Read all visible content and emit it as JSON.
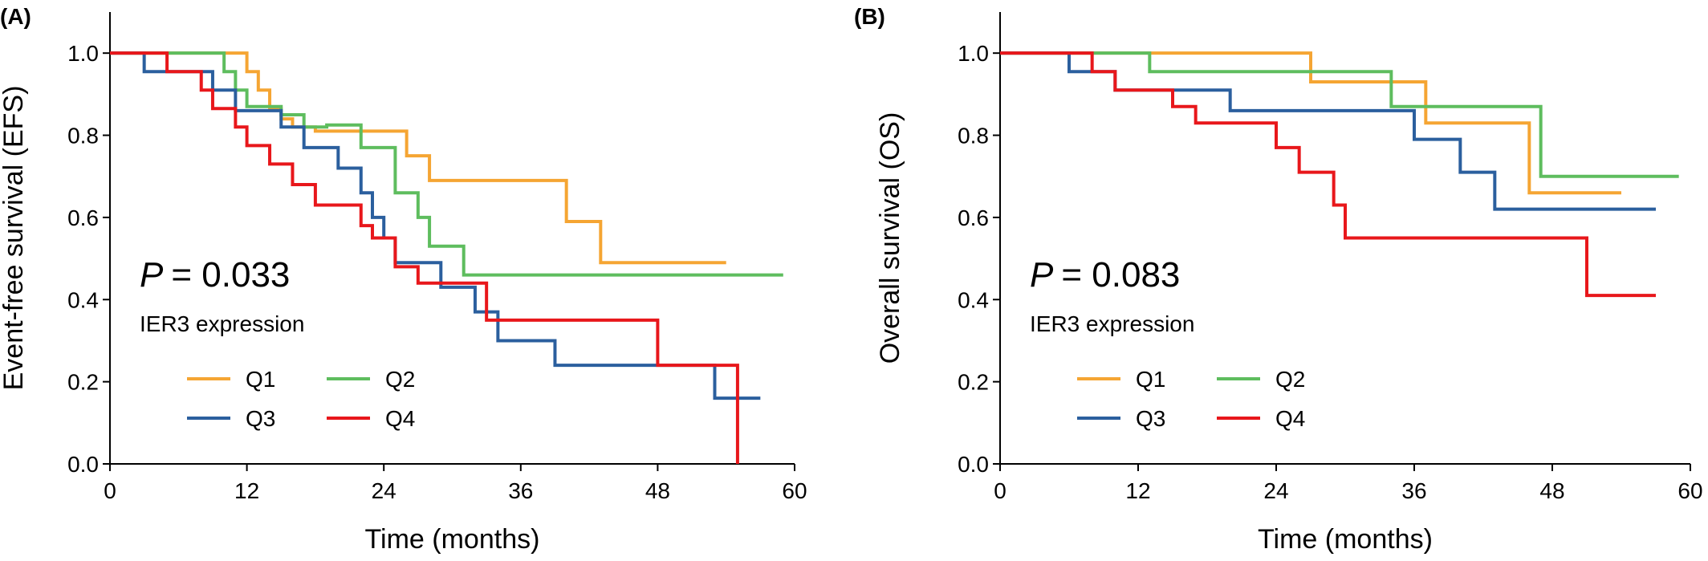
{
  "chart_data": [
    {
      "type": "line",
      "panel_label": "(A)",
      "xlabel": "Time (months)",
      "ylabel": "Event-free survival (EFS)",
      "xlim": [
        0,
        60
      ],
      "ylim": [
        0,
        1.1
      ],
      "xticks": [
        0,
        12,
        24,
        36,
        48,
        60
      ],
      "yticks": [
        0.0,
        0.2,
        0.4,
        0.6,
        0.8,
        1.0
      ],
      "grid": false,
      "annotation_p": "= 0.033",
      "annotation_p_symbol": "P",
      "legend_title": "IER3 expression",
      "legend_placement": "bottom-left",
      "series": [
        {
          "name": "Q1",
          "color": "#F5A533",
          "steps": [
            [
              0,
              1.0
            ],
            [
              12,
              0.955
            ],
            [
              13,
              0.91
            ],
            [
              14,
              0.865
            ],
            [
              15,
              0.84
            ],
            [
              16,
              0.82
            ],
            [
              18,
              0.81
            ],
            [
              20,
              0.81
            ],
            [
              26,
              0.75
            ],
            [
              28,
              0.69
            ],
            [
              40,
              0.59
            ],
            [
              43,
              0.49
            ],
            [
              54,
              0.49
            ]
          ]
        },
        {
          "name": "Q2",
          "color": "#5EBD5E",
          "steps": [
            [
              0,
              1.0
            ],
            [
              10,
              0.955
            ],
            [
              11,
              0.91
            ],
            [
              12,
              0.87
            ],
            [
              15,
              0.85
            ],
            [
              17,
              0.82
            ],
            [
              19,
              0.825
            ],
            [
              22,
              0.77
            ],
            [
              25,
              0.66
            ],
            [
              27,
              0.6
            ],
            [
              28,
              0.53
            ],
            [
              31,
              0.46
            ],
            [
              59,
              0.46
            ]
          ]
        },
        {
          "name": "Q3",
          "color": "#2B5F9E",
          "steps": [
            [
              0,
              1.0
            ],
            [
              3,
              0.955
            ],
            [
              9,
              0.91
            ],
            [
              11,
              0.86
            ],
            [
              15,
              0.82
            ],
            [
              17,
              0.77
            ],
            [
              20,
              0.72
            ],
            [
              22,
              0.66
            ],
            [
              23,
              0.6
            ],
            [
              24,
              0.55
            ],
            [
              25,
              0.49
            ],
            [
              29,
              0.43
            ],
            [
              32,
              0.37
            ],
            [
              34,
              0.3
            ],
            [
              39,
              0.24
            ],
            [
              53,
              0.16
            ],
            [
              57,
              0.16
            ]
          ]
        },
        {
          "name": "Q4",
          "color": "#E8171B",
          "steps": [
            [
              0,
              1.0
            ],
            [
              5,
              0.955
            ],
            [
              8,
              0.91
            ],
            [
              9,
              0.865
            ],
            [
              11,
              0.82
            ],
            [
              12,
              0.775
            ],
            [
              14,
              0.73
            ],
            [
              16,
              0.68
            ],
            [
              18,
              0.63
            ],
            [
              22,
              0.58
            ],
            [
              23,
              0.55
            ],
            [
              25,
              0.48
            ],
            [
              27,
              0.44
            ],
            [
              33,
              0.35
            ],
            [
              48,
              0.24
            ],
            [
              55,
              0.0
            ]
          ]
        }
      ]
    },
    {
      "type": "line",
      "panel_label": "(B)",
      "xlabel": "Time (months)",
      "ylabel": "Overall survival (OS)",
      "xlim": [
        0,
        60
      ],
      "ylim": [
        0,
        1.1
      ],
      "xticks": [
        0,
        12,
        24,
        36,
        48,
        60
      ],
      "yticks": [
        0.0,
        0.2,
        0.4,
        0.6,
        0.8,
        1.0
      ],
      "grid": false,
      "annotation_p": "= 0.083",
      "annotation_p_symbol": "P",
      "legend_title": "IER3 expression",
      "legend_placement": "bottom-left",
      "series": [
        {
          "name": "Q1",
          "color": "#F5A533",
          "steps": [
            [
              0,
              1.0
            ],
            [
              27,
              0.93
            ],
            [
              37,
              0.83
            ],
            [
              46,
              0.66
            ],
            [
              54,
              0.66
            ]
          ]
        },
        {
          "name": "Q2",
          "color": "#5EBD5E",
          "steps": [
            [
              0,
              1.0
            ],
            [
              13,
              0.955
            ],
            [
              34,
              0.87
            ],
            [
              47,
              0.7
            ],
            [
              59,
              0.7
            ]
          ]
        },
        {
          "name": "Q3",
          "color": "#2B5F9E",
          "steps": [
            [
              0,
              1.0
            ],
            [
              6,
              0.955
            ],
            [
              10,
              0.91
            ],
            [
              20,
              0.86
            ],
            [
              36,
              0.79
            ],
            [
              40,
              0.71
            ],
            [
              43,
              0.62
            ],
            [
              57,
              0.62
            ]
          ]
        },
        {
          "name": "Q4",
          "color": "#E8171B",
          "steps": [
            [
              0,
              1.0
            ],
            [
              8,
              0.955
            ],
            [
              10,
              0.91
            ],
            [
              15,
              0.87
            ],
            [
              17,
              0.83
            ],
            [
              24,
              0.77
            ],
            [
              26,
              0.71
            ],
            [
              29,
              0.63
            ],
            [
              30,
              0.55
            ],
            [
              51,
              0.41
            ],
            [
              57,
              0.41
            ]
          ]
        }
      ]
    }
  ]
}
